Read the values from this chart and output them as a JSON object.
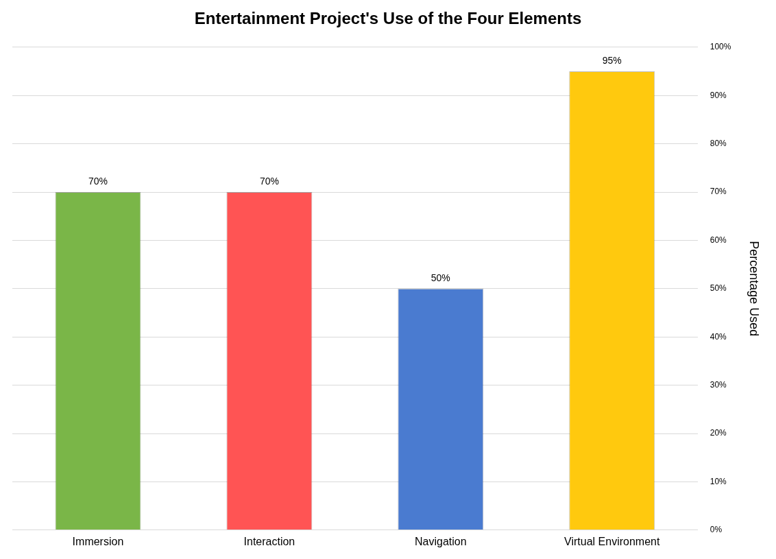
{
  "chart_data": {
    "type": "bar",
    "title": "Entertainment Project's Use of the Four Elements",
    "ylabel": "Percentage Used",
    "categories": [
      "Immersion",
      "Interaction",
      "Navigation",
      "Virtual Environment"
    ],
    "values": [
      70,
      70,
      50,
      95
    ],
    "colors": [
      "#7ab648",
      "#ff5454",
      "#4a7bd0",
      "#ffc90e"
    ],
    "value_labels": [
      "70%",
      "70%",
      "50%",
      "95%"
    ],
    "ylim": [
      0,
      100
    ],
    "yticks": [
      {
        "value": 0,
        "label": "0%"
      },
      {
        "value": 10,
        "label": "10%"
      },
      {
        "value": 20,
        "label": "20%"
      },
      {
        "value": 30,
        "label": "30%"
      },
      {
        "value": 40,
        "label": "40%"
      },
      {
        "value": 50,
        "label": "50%"
      },
      {
        "value": 60,
        "label": "60%"
      },
      {
        "value": 70,
        "label": "70%"
      },
      {
        "value": 80,
        "label": "80%"
      },
      {
        "value": 90,
        "label": "90%"
      },
      {
        "value": 100,
        "label": "100%"
      }
    ],
    "grid": "y",
    "legend": false
  }
}
